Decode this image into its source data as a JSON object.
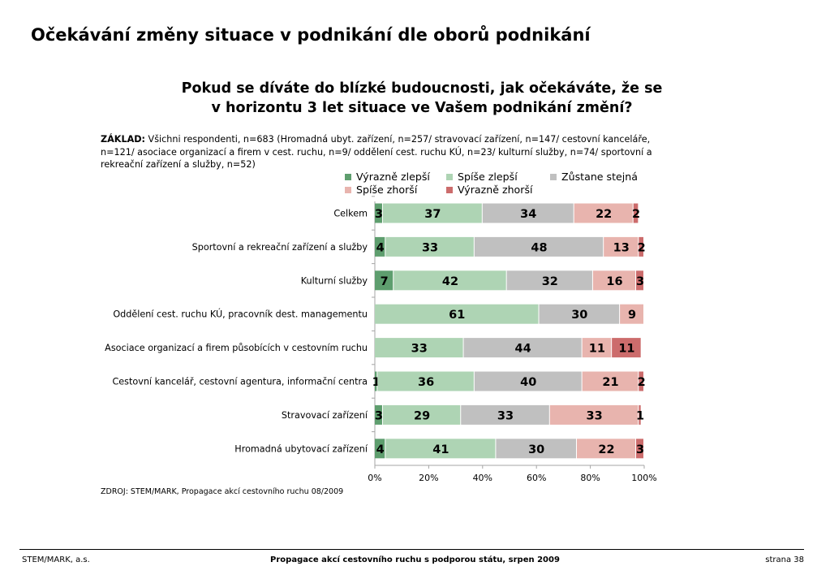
{
  "slide": {
    "title": "Očekávání změny situace v podnikání dle oborů podnikání",
    "question_line1": "Pokud se díváte do blízké budoucnosti, jak očekáváte, že se",
    "question_line2": "v horizontu 3 let situace ve Vašem podnikání změní?",
    "base_label": "ZÁKLAD:",
    "base_text": " Všichni respondenti, n=683  (Hromadná ubyt. zařízení, n=257/ stravovací zařízení, n=147/ cestovní kanceláře, n=121/ asociace organizací a firem v cest. ruchu, n=9/ oddělení cest. ruchu KÚ, n=23/ kulturní služby, n=74/ sportovní a rekreační zařízení a služby, n=52)",
    "source": "ZDROJ: STEM/MARK, Propagace akcí cestovního ruchu 08/2009"
  },
  "footer": {
    "left": "STEM/MARK, a.s.",
    "center": "Propagace akcí cestovního ruchu s podporou státu, srpen 2009",
    "right": "strana 38"
  },
  "colors": {
    "vyrazne_zlepsi": "#5e9e6e",
    "spise_zlepsi": "#aed4b4",
    "zustane_stejna": "#c0c0c0",
    "spise_zhorsi": "#e8b4ae",
    "vyrazne_zhorsi": "#cc6c6c",
    "axis": "#a6a6a6"
  },
  "chart_data": {
    "type": "bar",
    "orientation": "horizontal",
    "stacked": "100%",
    "categories": [
      "Celkem",
      "Sportovní a rekreační zařízení a služby",
      "Kulturní služby",
      "Oddělení cest. ruchu KÚ, pracovník dest. managementu",
      "Asociace organizací a firem působících v cestovním ruchu",
      "Cestovní kancelář, cestovní agentura, informační centra",
      "Stravovací zařízení",
      "Hromadná ubytovací zařízení"
    ],
    "series": [
      {
        "name": "Výrazně zlepší",
        "color": "#5e9e6e",
        "values": [
          3,
          4,
          7,
          0,
          0,
          1,
          3,
          4
        ]
      },
      {
        "name": "Spíše zlepší",
        "color": "#aed4b4",
        "values": [
          37,
          33,
          42,
          61,
          33,
          36,
          29,
          41
        ]
      },
      {
        "name": "Zůstane stejná",
        "color": "#c0c0c0",
        "values": [
          34,
          48,
          32,
          30,
          44,
          40,
          33,
          30
        ]
      },
      {
        "name": "Spíše zhorší",
        "color": "#e8b4ae",
        "values": [
          22,
          13,
          16,
          9,
          11,
          21,
          33,
          22
        ]
      },
      {
        "name": "Výrazně zhorší",
        "color": "#cc6c6c",
        "values": [
          2,
          2,
          3,
          0,
          11,
          2,
          1,
          3
        ]
      }
    ],
    "x_ticks": [
      "0%",
      "20%",
      "40%",
      "60%",
      "80%",
      "100%"
    ],
    "xlim": [
      0,
      100
    ],
    "legend_position": "top",
    "grid": false
  }
}
